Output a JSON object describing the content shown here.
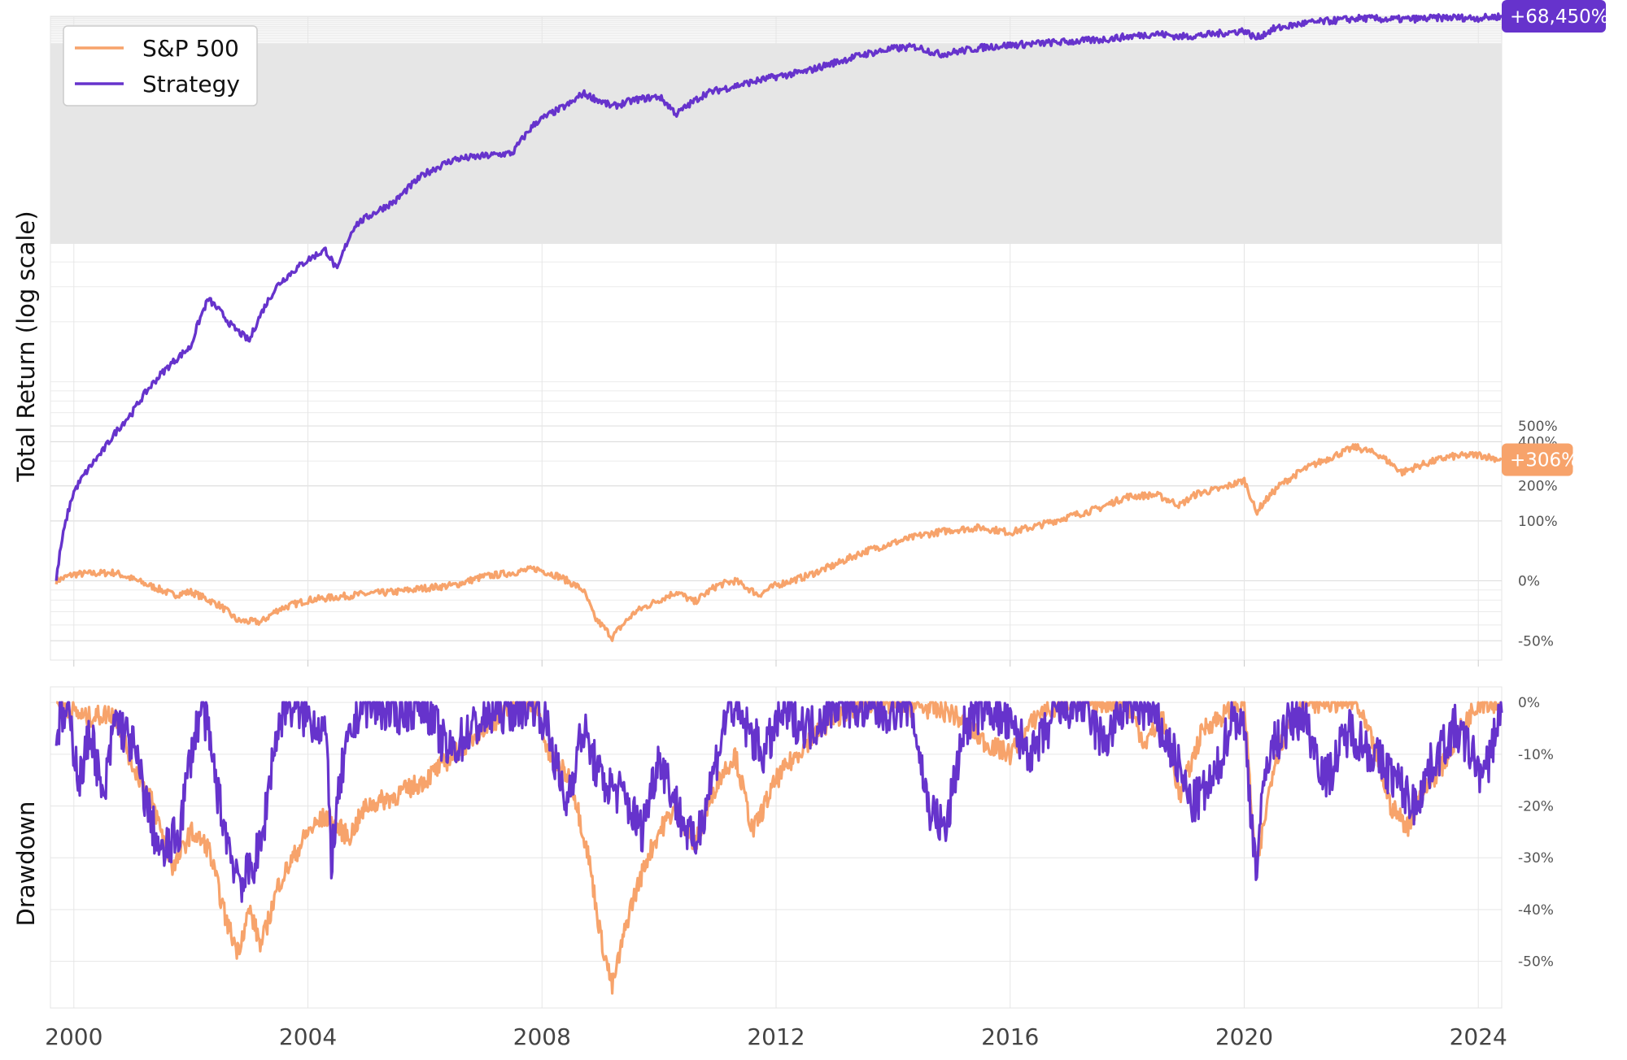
{
  "chart_data": [
    {
      "type": "line",
      "title": "",
      "xlabel": "",
      "ylabel": "Total Return (log scale)",
      "yscale": "log",
      "y_ticks": [
        "-50%",
        "0%",
        "100%",
        "200%",
        "400%",
        "500%"
      ],
      "xlim": [
        1999.6,
        2024.4
      ],
      "ylim": [
        "-60%",
        "+68,450%"
      ],
      "grid": true,
      "legend": "top-left",
      "end_labels": [
        {
          "series": "Strategy",
          "text": "+68,450%"
        },
        {
          "series": "S&P 500",
          "text": "+306%"
        }
      ],
      "series": [
        {
          "name": "S&P 500",
          "color": "#f7a36b",
          "points": [
            [
              1999.7,
              0
            ],
            [
              2000.0,
              8
            ],
            [
              2000.7,
              10
            ],
            [
              2001.2,
              -3
            ],
            [
              2001.7,
              -15
            ],
            [
              2002.0,
              -12
            ],
            [
              2002.5,
              -25
            ],
            [
              2002.8,
              -37
            ],
            [
              2003.2,
              -38
            ],
            [
              2003.5,
              -28
            ],
            [
              2004.0,
              -20
            ],
            [
              2004.5,
              -17
            ],
            [
              2005.0,
              -14
            ],
            [
              2005.5,
              -12
            ],
            [
              2006.0,
              -8
            ],
            [
              2006.5,
              -5
            ],
            [
              2007.0,
              5
            ],
            [
              2007.5,
              10
            ],
            [
              2007.9,
              15
            ],
            [
              2008.3,
              5
            ],
            [
              2008.7,
              -10
            ],
            [
              2008.9,
              -35
            ],
            [
              2009.2,
              -48
            ],
            [
              2009.6,
              -30
            ],
            [
              2010.0,
              -20
            ],
            [
              2010.3,
              -12
            ],
            [
              2010.6,
              -22
            ],
            [
              2011.0,
              -5
            ],
            [
              2011.3,
              0
            ],
            [
              2011.7,
              -15
            ],
            [
              2012.0,
              -5
            ],
            [
              2012.5,
              5
            ],
            [
              2013.0,
              20
            ],
            [
              2013.5,
              40
            ],
            [
              2014.0,
              55
            ],
            [
              2014.5,
              70
            ],
            [
              2015.0,
              80
            ],
            [
              2015.5,
              85
            ],
            [
              2016.0,
              75
            ],
            [
              2016.5,
              90
            ],
            [
              2017.0,
              110
            ],
            [
              2017.5,
              130
            ],
            [
              2018.0,
              165
            ],
            [
              2018.5,
              170
            ],
            [
              2018.9,
              140
            ],
            [
              2019.2,
              175
            ],
            [
              2019.6,
              190
            ],
            [
              2020.0,
              220
            ],
            [
              2020.2,
              120
            ],
            [
              2020.6,
              200
            ],
            [
              2021.0,
              260
            ],
            [
              2021.5,
              320
            ],
            [
              2021.9,
              370
            ],
            [
              2022.3,
              330
            ],
            [
              2022.7,
              250
            ],
            [
              2023.0,
              280
            ],
            [
              2023.5,
              320
            ],
            [
              2024.0,
              330
            ],
            [
              2024.4,
              306
            ]
          ]
        },
        {
          "name": "Strategy",
          "color": "#6633cc",
          "points": [
            [
              1999.7,
              0
            ],
            [
              2000.0,
              180
            ],
            [
              2000.5,
              350
            ],
            [
              2001.0,
              600
            ],
            [
              2001.5,
              1000
            ],
            [
              2002.0,
              1400
            ],
            [
              2002.3,
              2500
            ],
            [
              2002.7,
              1800
            ],
            [
              2003.0,
              1500
            ],
            [
              2003.5,
              3000
            ],
            [
              2004.0,
              4000
            ],
            [
              2004.3,
              4500
            ],
            [
              2004.5,
              3500
            ],
            [
              2004.8,
              6000
            ],
            [
              2005.5,
              8000
            ],
            [
              2006.0,
              11000
            ],
            [
              2006.5,
              13000
            ],
            [
              2007.0,
              13500
            ],
            [
              2007.5,
              14000
            ],
            [
              2007.9,
              20000
            ],
            [
              2008.5,
              25000
            ],
            [
              2008.7,
              28000
            ],
            [
              2009.2,
              24000
            ],
            [
              2009.6,
              26000
            ],
            [
              2010.0,
              27000
            ],
            [
              2010.3,
              22000
            ],
            [
              2010.8,
              28000
            ],
            [
              2011.2,
              30000
            ],
            [
              2011.6,
              32000
            ],
            [
              2012.0,
              34000
            ],
            [
              2012.5,
              36000
            ],
            [
              2013.0,
              40000
            ],
            [
              2013.5,
              44000
            ],
            [
              2014.0,
              47000
            ],
            [
              2014.4,
              48000
            ],
            [
              2014.8,
              44000
            ],
            [
              2015.2,
              46000
            ],
            [
              2015.6,
              48000
            ],
            [
              2016.0,
              49000
            ],
            [
              2016.5,
              50000
            ],
            [
              2017.0,
              51000
            ],
            [
              2017.5,
              52000
            ],
            [
              2018.0,
              54000
            ],
            [
              2018.5,
              56000
            ],
            [
              2018.9,
              54000
            ],
            [
              2019.3,
              55000
            ],
            [
              2019.8,
              57000
            ],
            [
              2020.0,
              58000
            ],
            [
              2020.2,
              53000
            ],
            [
              2020.5,
              59000
            ],
            [
              2021.0,
              63000
            ],
            [
              2021.5,
              65000
            ],
            [
              2022.0,
              67000
            ],
            [
              2022.5,
              66000
            ],
            [
              2023.0,
              66500
            ],
            [
              2023.5,
              67500
            ],
            [
              2024.0,
              67000
            ],
            [
              2024.4,
              68450
            ]
          ]
        }
      ]
    },
    {
      "type": "line",
      "title": "",
      "xlabel": "",
      "ylabel": "Drawdown",
      "y_ticks": [
        "0%",
        "-10%",
        "-20%",
        "-30%",
        "-40%",
        "-50%"
      ],
      "xlim": [
        1999.6,
        2024.4
      ],
      "ylim": [
        -59,
        3
      ],
      "grid": true,
      "x_ticks": [
        "2000",
        "2004",
        "2008",
        "2012",
        "2016",
        "2020",
        "2024"
      ],
      "series": [
        {
          "name": "S&P 500",
          "color": "#f7a36b",
          "points": [
            [
              1999.7,
              0
            ],
            [
              2000.2,
              -3
            ],
            [
              2000.7,
              -2
            ],
            [
              2001.0,
              -12
            ],
            [
              2001.3,
              -18
            ],
            [
              2001.7,
              -32
            ],
            [
              2002.0,
              -25
            ],
            [
              2002.3,
              -28
            ],
            [
              2002.6,
              -42
            ],
            [
              2002.8,
              -48
            ],
            [
              2003.0,
              -40
            ],
            [
              2003.2,
              -47
            ],
            [
              2003.5,
              -35
            ],
            [
              2004.0,
              -25
            ],
            [
              2004.3,
              -22
            ],
            [
              2004.7,
              -26
            ],
            [
              2005.0,
              -20
            ],
            [
              2005.5,
              -18
            ],
            [
              2006.0,
              -15
            ],
            [
              2006.5,
              -10
            ],
            [
              2007.0,
              -5
            ],
            [
              2007.5,
              -1
            ],
            [
              2007.9,
              0
            ],
            [
              2008.1,
              -10
            ],
            [
              2008.5,
              -15
            ],
            [
              2008.8,
              -30
            ],
            [
              2009.0,
              -45
            ],
            [
              2009.2,
              -55
            ],
            [
              2009.5,
              -40
            ],
            [
              2009.8,
              -30
            ],
            [
              2010.0,
              -25
            ],
            [
              2010.3,
              -20
            ],
            [
              2010.6,
              -28
            ],
            [
              2011.0,
              -15
            ],
            [
              2011.3,
              -10
            ],
            [
              2011.6,
              -25
            ],
            [
              2012.0,
              -15
            ],
            [
              2012.5,
              -8
            ],
            [
              2013.0,
              -3
            ],
            [
              2013.5,
              0
            ],
            [
              2014.5,
              -1
            ],
            [
              2015.0,
              -2
            ],
            [
              2015.6,
              -8
            ],
            [
              2016.0,
              -10
            ],
            [
              2016.5,
              -2
            ],
            [
              2017.0,
              0
            ],
            [
              2018.0,
              0
            ],
            [
              2018.3,
              -8
            ],
            [
              2018.6,
              -3
            ],
            [
              2018.9,
              -18
            ],
            [
              2019.3,
              -5
            ],
            [
              2019.7,
              -2
            ],
            [
              2020.0,
              0
            ],
            [
              2020.2,
              -33
            ],
            [
              2020.5,
              -12
            ],
            [
              2020.8,
              -3
            ],
            [
              2021.0,
              0
            ],
            [
              2021.9,
              0
            ],
            [
              2022.2,
              -8
            ],
            [
              2022.5,
              -20
            ],
            [
              2022.8,
              -24
            ],
            [
              2023.0,
              -18
            ],
            [
              2023.4,
              -12
            ],
            [
              2023.7,
              -5
            ],
            [
              2024.0,
              0
            ],
            [
              2024.4,
              0
            ]
          ]
        },
        {
          "name": "Strategy",
          "color": "#6633cc",
          "points": [
            [
              1999.7,
              -5
            ],
            [
              1999.9,
              -2
            ],
            [
              2000.1,
              -15
            ],
            [
              2000.3,
              -5
            ],
            [
              2000.5,
              -20
            ],
            [
              2000.7,
              -3
            ],
            [
              2001.0,
              -8
            ],
            [
              2001.3,
              -22
            ],
            [
              2001.5,
              -30
            ],
            [
              2001.8,
              -25
            ],
            [
              2002.0,
              -10
            ],
            [
              2002.2,
              0
            ],
            [
              2002.5,
              -20
            ],
            [
              2002.7,
              -30
            ],
            [
              2002.9,
              -35
            ],
            [
              2003.2,
              -28
            ],
            [
              2003.4,
              -10
            ],
            [
              2003.6,
              0
            ],
            [
              2004.0,
              -3
            ],
            [
              2004.3,
              -5
            ],
            [
              2004.4,
              -30
            ],
            [
              2004.6,
              -12
            ],
            [
              2004.9,
              0
            ],
            [
              2005.5,
              -2
            ],
            [
              2006.0,
              0
            ],
            [
              2006.4,
              -10
            ],
            [
              2006.8,
              -5
            ],
            [
              2007.2,
              -2
            ],
            [
              2007.5,
              -1
            ],
            [
              2007.9,
              0
            ],
            [
              2008.1,
              -5
            ],
            [
              2008.4,
              -20
            ],
            [
              2008.7,
              -5
            ],
            [
              2009.0,
              -15
            ],
            [
              2009.4,
              -18
            ],
            [
              2009.7,
              -25
            ],
            [
              2010.0,
              -10
            ],
            [
              2010.3,
              -20
            ],
            [
              2010.6,
              -28
            ],
            [
              2010.9,
              -15
            ],
            [
              2011.2,
              0
            ],
            [
              2011.5,
              -5
            ],
            [
              2011.8,
              -10
            ],
            [
              2012.1,
              -2
            ],
            [
              2012.6,
              -5
            ],
            [
              2013.0,
              0
            ],
            [
              2013.8,
              -2
            ],
            [
              2014.3,
              0
            ],
            [
              2014.6,
              -20
            ],
            [
              2014.9,
              -25
            ],
            [
              2015.2,
              -5
            ],
            [
              2015.6,
              0
            ],
            [
              2016.0,
              -5
            ],
            [
              2016.4,
              -10
            ],
            [
              2016.8,
              -2
            ],
            [
              2017.2,
              0
            ],
            [
              2017.6,
              -8
            ],
            [
              2018.0,
              0
            ],
            [
              2018.4,
              -2
            ],
            [
              2018.8,
              -10
            ],
            [
              2019.1,
              -20
            ],
            [
              2019.5,
              -15
            ],
            [
              2019.8,
              -2
            ],
            [
              2020.0,
              -5
            ],
            [
              2020.2,
              -32
            ],
            [
              2020.4,
              -10
            ],
            [
              2020.7,
              -5
            ],
            [
              2021.0,
              -2
            ],
            [
              2021.4,
              -15
            ],
            [
              2021.8,
              -5
            ],
            [
              2022.2,
              -10
            ],
            [
              2022.6,
              -15
            ],
            [
              2022.9,
              -20
            ],
            [
              2023.2,
              -12
            ],
            [
              2023.6,
              -5
            ],
            [
              2023.9,
              -10
            ],
            [
              2024.1,
              -15
            ],
            [
              2024.3,
              -5
            ],
            [
              2024.4,
              -2
            ]
          ]
        }
      ]
    }
  ]
}
